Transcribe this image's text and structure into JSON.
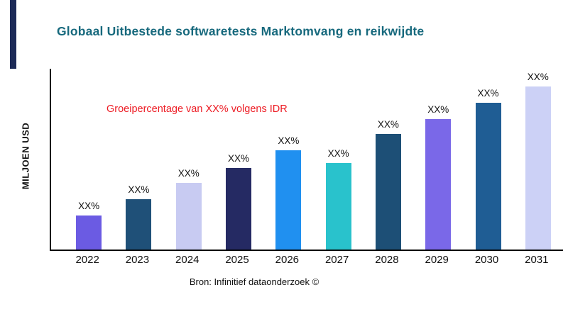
{
  "header": {
    "title": "Globaal Uitbestede softwaretests Marktomvang en reikwijdte"
  },
  "footer": {
    "source": "Bron: Infinitief dataonderzoek ©"
  },
  "chart_data": {
    "type": "bar",
    "title": "Globaal Uitbestede softwaretests Marktomvang en reikwijdte",
    "xlabel": "",
    "ylabel": "MILJOEN USD",
    "annotation": "Groeipercentage van XX% volgens IDR",
    "annotation_color": "#ed1c24",
    "categories": [
      "2022",
      "2023",
      "2024",
      "2025",
      "2026",
      "2027",
      "2028",
      "2029",
      "2030",
      "2031"
    ],
    "values": [
      21,
      31,
      41,
      50,
      61,
      53,
      71,
      80,
      90,
      100
    ],
    "bar_labels": [
      "XX%",
      "XX%",
      "XX%",
      "XX%",
      "XX%",
      "XX%",
      "XX%",
      "XX%",
      "XX%",
      "XX%"
    ],
    "bar_colors": [
      "#6b5be3",
      "#1f5078",
      "#c8cbf2",
      "#252a63",
      "#2090f0",
      "#29c2cc",
      "#1d4f76",
      "#7a68e8",
      "#1f5d94",
      "#ccd1f6"
    ],
    "ylim": [
      0,
      110
    ],
    "grid": false,
    "legend": false,
    "units": "MILJOEN USD"
  },
  "colors": {
    "title": "#17697d",
    "axis": "#000000",
    "accent_strip": "#1c2a57",
    "annotation": "#ed1c24"
  }
}
